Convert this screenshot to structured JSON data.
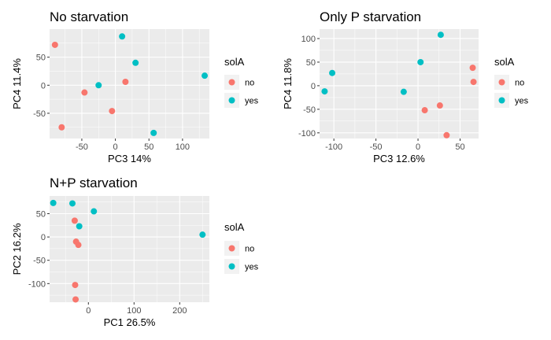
{
  "chart_data": [
    {
      "type": "scatter",
      "title": "No starvation",
      "xlabel": "PC3 14%",
      "ylabel": "PC4 11.4%",
      "xlim": [
        -98,
        140
      ],
      "ylim": [
        -95,
        100
      ],
      "xticks": [
        -100,
        -50,
        0,
        50,
        100
      ],
      "yticks": [
        -50,
        0,
        50
      ],
      "grid": true,
      "legend": {
        "title": "solA",
        "placement": "right"
      },
      "series": [
        {
          "name": "no",
          "color": "#F8766D",
          "points": [
            [
              -90,
              72
            ],
            [
              -80,
              -75
            ],
            [
              -46,
              -13
            ],
            [
              -5,
              -46
            ],
            [
              15,
              6
            ]
          ]
        },
        {
          "name": "yes",
          "color": "#00BFC4",
          "points": [
            [
              -25,
              0
            ],
            [
              10,
              87
            ],
            [
              30,
              40
            ],
            [
              57,
              -85
            ],
            [
              133,
              17
            ]
          ]
        }
      ]
    },
    {
      "type": "scatter",
      "title": "Only P starvation",
      "xlabel": "PC3 12.6%",
      "ylabel": "PC4 11.8%",
      "xlim": [
        -117,
        72
      ],
      "ylim": [
        -112,
        120
      ],
      "xticks": [
        -100,
        -50,
        0,
        50
      ],
      "yticks": [
        -100,
        -50,
        0,
        50,
        100
      ],
      "grid": true,
      "legend": {
        "title": "solA",
        "placement": "right"
      },
      "series": [
        {
          "name": "no",
          "color": "#F8766D",
          "points": [
            [
              8,
              -52
            ],
            [
              26,
              -42
            ],
            [
              34,
              -105
            ],
            [
              65,
              38
            ],
            [
              66,
              8
            ]
          ]
        },
        {
          "name": "yes",
          "color": "#00BFC4",
          "points": [
            [
              -111,
              -12
            ],
            [
              -102,
              27
            ],
            [
              -17,
              -13
            ],
            [
              3,
              50
            ],
            [
              27,
              108
            ]
          ]
        }
      ]
    },
    {
      "type": "scatter",
      "title": "N+P starvation",
      "xlabel": "PC1 26.5%",
      "ylabel": "PC2 16.2%",
      "xlim": [
        -85,
        265
      ],
      "ylim": [
        -140,
        88
      ],
      "xticks": [
        0,
        100,
        200
      ],
      "yticks": [
        -100,
        -50,
        0,
        50
      ],
      "grid": true,
      "legend": {
        "title": "solA",
        "placement": "right"
      },
      "series": [
        {
          "name": "no",
          "color": "#F8766D",
          "points": [
            [
              -30,
              35
            ],
            [
              -27,
              -10
            ],
            [
              -22,
              -17
            ],
            [
              -29,
              -103
            ],
            [
              -28,
              -134
            ]
          ]
        },
        {
          "name": "yes",
          "color": "#00BFC4",
          "points": [
            [
              -77,
              73
            ],
            [
              -35,
              72
            ],
            [
              -20,
              23
            ],
            [
              12,
              55
            ],
            [
              250,
              5
            ]
          ]
        }
      ]
    }
  ]
}
